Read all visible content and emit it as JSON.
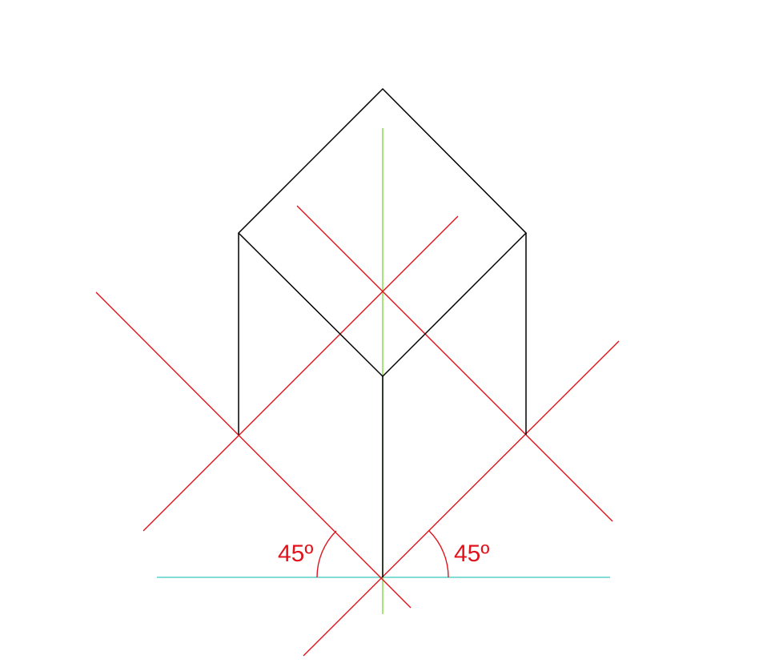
{
  "angles": {
    "left_label": "45º",
    "right_label": "45º"
  },
  "colors": {
    "cube_edges": "#000000",
    "construction_lines": "#e0141c",
    "vertical_axis": "#7fdc3c",
    "ground_line": "#58d2c8",
    "angle_text": "#e0141c"
  }
}
